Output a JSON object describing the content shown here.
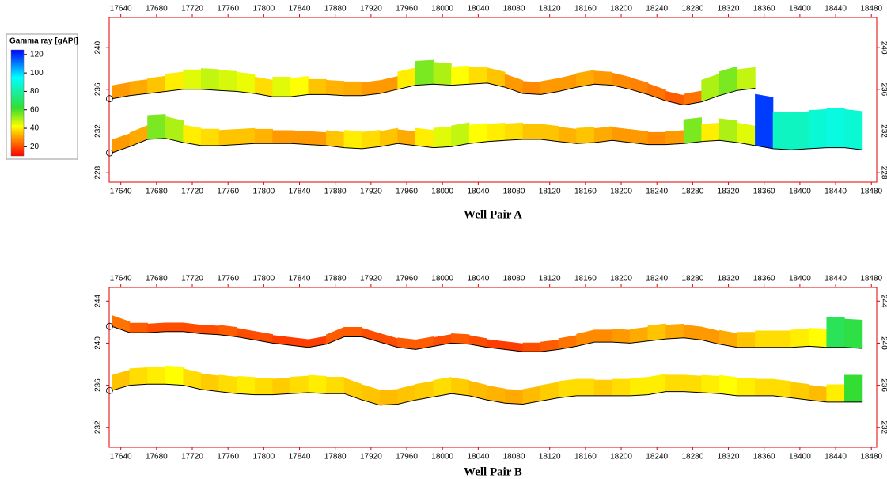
{
  "legend": {
    "title": "Gamma ray [gAPI]",
    "lim": [
      10,
      125
    ],
    "ticks": [
      20,
      40,
      60,
      80,
      100,
      120
    ],
    "stops": [
      [
        10,
        "#ff0000"
      ],
      [
        30,
        "#ff9900"
      ],
      [
        42,
        "#ffff00"
      ],
      [
        62,
        "#33dd33"
      ],
      [
        95,
        "#00ffff"
      ],
      [
        125,
        "#0000ff"
      ]
    ]
  },
  "chart_data": [
    {
      "type": "well-log",
      "title": "Well Pair A",
      "xlim": [
        17627,
        18486
      ],
      "ylim": [
        227.1,
        242.9
      ],
      "xticks": [
        17640,
        17680,
        17720,
        17760,
        17800,
        17840,
        17880,
        17920,
        17960,
        18000,
        18040,
        18080,
        18120,
        18160,
        18200,
        18240,
        18280,
        18320,
        18360,
        18400,
        18440,
        18480
      ],
      "yticks": [
        228,
        232,
        236,
        240
      ],
      "x": [
        17630,
        17650,
        17670,
        17690,
        17710,
        17730,
        17750,
        17770,
        17790,
        17810,
        17830,
        17850,
        17870,
        17890,
        17910,
        17930,
        17950,
        17970,
        17990,
        18010,
        18030,
        18050,
        18070,
        18090,
        18110,
        18130,
        18150,
        18170,
        18190,
        18210,
        18230,
        18250,
        18270,
        18290,
        18310,
        18330,
        18350,
        18370,
        18390,
        18410,
        18430,
        18450,
        18470
      ],
      "series": [
        {
          "color": "#000000",
          "values": [
            235.1,
            235.4,
            235.6,
            235.8,
            236.0,
            236.0,
            235.9,
            235.8,
            235.6,
            235.3,
            235.3,
            235.5,
            235.5,
            235.4,
            235.4,
            235.6,
            236.0,
            236.4,
            236.5,
            236.4,
            236.5,
            236.6,
            236.2,
            235.6,
            235.5,
            235.8,
            236.2,
            236.5,
            236.4,
            236.0,
            235.5,
            234.9,
            234.5,
            234.8,
            235.4,
            235.9,
            236.1,
            null,
            null,
            null,
            null,
            null,
            null
          ],
          "gamma": [
            30,
            32,
            35,
            40,
            45,
            48,
            46,
            44,
            38,
            45,
            42,
            35,
            33,
            32,
            30,
            30,
            40,
            55,
            50,
            42,
            38,
            35,
            30,
            28,
            30,
            30,
            32,
            30,
            28,
            27,
            25,
            22,
            25,
            50,
            55,
            48,
            null,
            null,
            null,
            null,
            null,
            null,
            null
          ]
        },
        {
          "color": "#000000",
          "values": [
            229.9,
            230.5,
            231.2,
            231.3,
            230.9,
            230.6,
            230.6,
            230.7,
            230.8,
            230.8,
            230.8,
            230.7,
            230.6,
            230.4,
            230.3,
            230.5,
            230.8,
            230.6,
            230.4,
            230.5,
            230.8,
            231.0,
            231.1,
            231.2,
            231.2,
            231.0,
            230.8,
            230.9,
            231.1,
            230.9,
            230.7,
            230.7,
            230.8,
            231.0,
            231.1,
            230.9,
            230.6,
            230.3,
            230.2,
            230.3,
            230.4,
            230.4,
            230.2
          ],
          "gamma": [
            30,
            32,
            55,
            50,
            40,
            38,
            35,
            35,
            33,
            30,
            30,
            30,
            35,
            40,
            38,
            35,
            32,
            40,
            45,
            48,
            42,
            40,
            38,
            35,
            35,
            33,
            35,
            32,
            30,
            30,
            28,
            30,
            55,
            40,
            50,
            45,
            118,
            85,
            85,
            88,
            90,
            88,
            null
          ]
        }
      ]
    },
    {
      "type": "well-log",
      "title": "Well Pair B",
      "xlim": [
        17627,
        18486
      ],
      "ylim": [
        230.1,
        245.3
      ],
      "xticks": [
        17640,
        17680,
        17720,
        17760,
        17800,
        17840,
        17880,
        17920,
        17960,
        18000,
        18040,
        18080,
        18120,
        18160,
        18200,
        18240,
        18280,
        18320,
        18360,
        18400,
        18440,
        18480
      ],
      "yticks": [
        232,
        236,
        240,
        244
      ],
      "x": [
        17630,
        17650,
        17670,
        17690,
        17710,
        17730,
        17750,
        17770,
        17790,
        17810,
        17830,
        17850,
        17870,
        17890,
        17910,
        17930,
        17950,
        17970,
        17990,
        18010,
        18030,
        18050,
        18070,
        18090,
        18110,
        18130,
        18150,
        18170,
        18190,
        18210,
        18230,
        18250,
        18270,
        18290,
        18310,
        18330,
        18350,
        18370,
        18390,
        18410,
        18430,
        18450,
        18470
      ],
      "series": [
        {
          "color": "#000000",
          "values": [
            241.6,
            241.0,
            241.0,
            241.1,
            241.1,
            240.9,
            240.8,
            240.6,
            240.3,
            240.0,
            239.8,
            239.6,
            239.9,
            240.6,
            240.6,
            240.1,
            239.6,
            239.4,
            239.7,
            240.0,
            239.9,
            239.6,
            239.4,
            239.2,
            239.2,
            239.4,
            239.7,
            240.1,
            240.1,
            240.0,
            240.2,
            240.4,
            240.5,
            240.3,
            239.9,
            239.6,
            239.6,
            239.6,
            239.6,
            239.7,
            239.6,
            239.6,
            239.5
          ],
          "gamma": [
            25,
            22,
            20,
            20,
            20,
            20,
            22,
            20,
            20,
            18,
            18,
            18,
            22,
            22,
            20,
            20,
            22,
            22,
            20,
            22,
            20,
            18,
            18,
            20,
            22,
            25,
            28,
            28,
            30,
            32,
            35,
            32,
            30,
            30,
            32,
            35,
            38,
            38,
            40,
            42,
            68,
            65,
            null
          ]
        },
        {
          "color": "#000000",
          "values": [
            235.5,
            236.0,
            236.1,
            236.1,
            236.0,
            235.6,
            235.4,
            235.2,
            235.1,
            235.1,
            235.2,
            235.3,
            235.2,
            235.2,
            234.6,
            234.1,
            234.2,
            234.6,
            234.9,
            235.2,
            235.0,
            234.6,
            234.3,
            234.2,
            234.5,
            234.8,
            235.0,
            235.0,
            235.0,
            235.0,
            235.1,
            235.4,
            235.4,
            235.3,
            235.2,
            235.0,
            235.0,
            235.0,
            234.8,
            234.6,
            234.4,
            234.4,
            234.4
          ],
          "gamma": [
            35,
            38,
            40,
            42,
            38,
            36,
            38,
            40,
            38,
            36,
            38,
            40,
            38,
            36,
            35,
            34,
            35,
            36,
            38,
            36,
            34,
            33,
            32,
            34,
            36,
            38,
            38,
            36,
            38,
            40,
            40,
            38,
            38,
            40,
            42,
            40,
            38,
            38,
            36,
            34,
            40,
            62,
            null
          ]
        }
      ]
    }
  ]
}
